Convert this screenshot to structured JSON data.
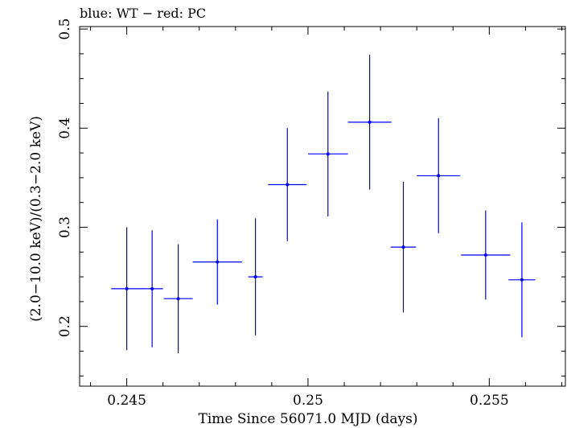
{
  "chart_data": {
    "type": "scatter",
    "title": "blue: WT − red: PC",
    "xlabel": "Time Since 56071.0 MJD (days)",
    "ylabel": "(2.0−10.0 keV)/(0.3−2.0 keV)",
    "xlim": [
      0.2437,
      0.2571
    ],
    "ylim": [
      0.1397,
      0.5025
    ],
    "x_ticks": [
      {
        "value": 0.245,
        "label": "0.245"
      },
      {
        "value": 0.25,
        "label": "0.25"
      },
      {
        "value": 0.255,
        "label": "0.255"
      }
    ],
    "y_ticks": [
      {
        "value": 0.2,
        "label": "0.2"
      },
      {
        "value": 0.3,
        "label": "0.3"
      },
      {
        "value": 0.4,
        "label": "0.4"
      },
      {
        "value": 0.5,
        "label": "0.5"
      }
    ],
    "series": [
      {
        "color": "#0000ff",
        "points": [
          {
            "x": 0.245,
            "xerr_lo": 0.00043,
            "xerr_hi": 0.00043,
            "y": 0.238,
            "yerr_lo": 0.062,
            "yerr_hi": 0.062
          },
          {
            "x": 0.2457,
            "xerr_lo": 0.0003,
            "xerr_hi": 0.0003,
            "y": 0.238,
            "yerr_lo": 0.059,
            "yerr_hi": 0.059
          },
          {
            "x": 0.24642,
            "xerr_lo": 0.0004,
            "xerr_hi": 0.0004,
            "y": 0.228,
            "yerr_lo": 0.055,
            "yerr_hi": 0.055
          },
          {
            "x": 0.2475,
            "xerr_lo": 0.00068,
            "xerr_hi": 0.00068,
            "y": 0.265,
            "yerr_lo": 0.043,
            "yerr_hi": 0.043
          },
          {
            "x": 0.24855,
            "xerr_lo": 0.0002,
            "xerr_hi": 0.0002,
            "y": 0.25,
            "yerr_lo": 0.059,
            "yerr_hi": 0.059
          },
          {
            "x": 0.24943,
            "xerr_lo": 0.00053,
            "xerr_hi": 0.00053,
            "y": 0.343,
            "yerr_lo": 0.057,
            "yerr_hi": 0.057
          },
          {
            "x": 0.25055,
            "xerr_lo": 0.00055,
            "xerr_hi": 0.00055,
            "y": 0.374,
            "yerr_lo": 0.063,
            "yerr_hi": 0.063
          },
          {
            "x": 0.2517,
            "xerr_lo": 0.0006,
            "xerr_hi": 0.0006,
            "y": 0.406,
            "yerr_lo": 0.068,
            "yerr_hi": 0.068
          },
          {
            "x": 0.25263,
            "xerr_lo": 0.00035,
            "xerr_hi": 0.00035,
            "y": 0.28,
            "yerr_lo": 0.066,
            "yerr_hi": 0.066
          },
          {
            "x": 0.2536,
            "xerr_lo": 0.0006,
            "xerr_hi": 0.0006,
            "y": 0.352,
            "yerr_lo": 0.058,
            "yerr_hi": 0.058
          },
          {
            "x": 0.2549,
            "xerr_lo": 0.00068,
            "xerr_hi": 0.00068,
            "y": 0.272,
            "yerr_lo": 0.045,
            "yerr_hi": 0.045
          },
          {
            "x": 0.2559,
            "xerr_lo": 0.00037,
            "xerr_hi": 0.00037,
            "y": 0.247,
            "yerr_lo": 0.058,
            "yerr_hi": 0.058
          }
        ]
      }
    ]
  }
}
